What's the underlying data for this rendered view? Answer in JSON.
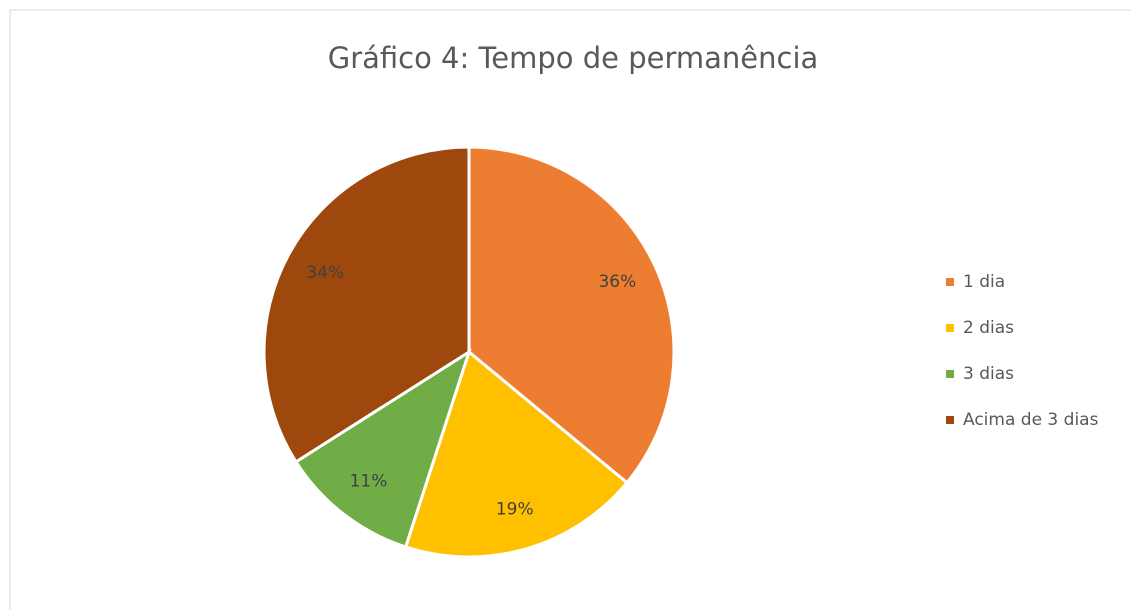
{
  "chart_data": {
    "type": "pie",
    "title": "Gráfico 4: Tempo de permanência",
    "categories": [
      "1 dia",
      "2 dias",
      "3 dias",
      "Acima de 3 dias"
    ],
    "values": [
      36,
      19,
      11,
      34
    ],
    "value_labels": [
      "36%",
      "19%",
      "11%",
      "34%"
    ],
    "colors": [
      "#ED7D31",
      "#FFC000",
      "#70AD47",
      "#9E480E"
    ],
    "legend": "right"
  }
}
